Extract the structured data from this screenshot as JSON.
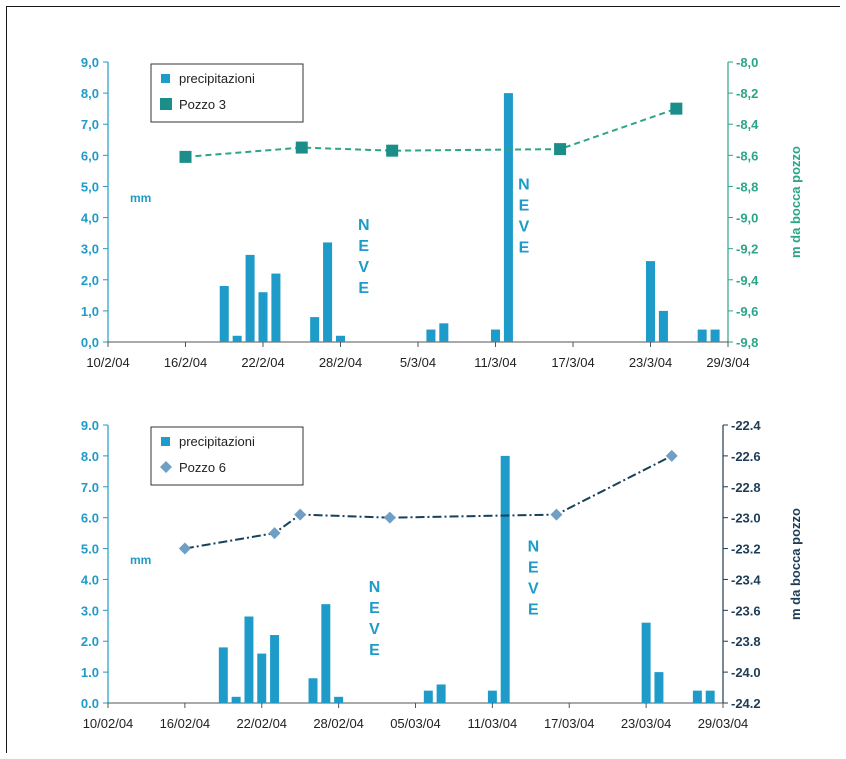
{
  "chart_data": [
    {
      "type": "bar+line",
      "title": "",
      "categories": [
        "10/2/04",
        "16/2/04",
        "22/2/04",
        "28/2/04",
        "5/3/04",
        "11/3/04",
        "17/3/04",
        "23/3/04",
        "29/3/04"
      ],
      "left_axis": {
        "label": "mm",
        "ylim": [
          0,
          9
        ],
        "ticks": [
          "0,0",
          "1,0",
          "2,0",
          "3,0",
          "4,0",
          "5,0",
          "6,0",
          "7,0",
          "8,0",
          "9,0"
        ]
      },
      "right_axis": {
        "label": "m da bocca pozzo",
        "ylim": [
          -9.8,
          -8.0
        ],
        "ticks": [
          "-8,0",
          "-8,2",
          "-8,4",
          "-8,6",
          "-8,8",
          "-9,0",
          "-9,2",
          "-9,4",
          "-9,6",
          "-9,8"
        ]
      },
      "series": [
        {
          "name": "precipitazioni",
          "kind": "bar",
          "points": [
            [
              9,
              1.8
            ],
            [
              10,
              0.2
            ],
            [
              11,
              2.8
            ],
            [
              12,
              1.6
            ],
            [
              13,
              2.2
            ],
            [
              16,
              0.8
            ],
            [
              17,
              3.2
            ],
            [
              18,
              0.2
            ],
            [
              25,
              0.4
            ],
            [
              26,
              0.6
            ],
            [
              30,
              0.4
            ],
            [
              31,
              8.0
            ],
            [
              42,
              2.6
            ],
            [
              43,
              1.0
            ],
            [
              46,
              0.4
            ],
            [
              47,
              0.4
            ]
          ]
        },
        {
          "name": "Pozzo 3",
          "kind": "line",
          "marker": "square",
          "points": [
            [
              6,
              -8.61
            ],
            [
              15,
              -8.55
            ],
            [
              22,
              -8.57
            ],
            [
              35,
              -8.56
            ],
            [
              44,
              -8.3
            ]
          ]
        }
      ],
      "annotations": [
        {
          "text": "N E V E",
          "x": 19.8,
          "y": 3.6
        },
        {
          "text": "N E V E",
          "x": 32.2,
          "y": 4.9
        }
      ]
    },
    {
      "type": "bar+line",
      "title": "",
      "categories": [
        "10/02/04",
        "16/02/04",
        "22/02/04",
        "28/02/04",
        "05/03/04",
        "11/03/04",
        "17/03/04",
        "23/03/04",
        "29/03/04"
      ],
      "left_axis": {
        "label": "mm",
        "ylim": [
          0,
          9
        ],
        "ticks": [
          "0.0",
          "1.0",
          "2.0",
          "3.0",
          "4.0",
          "5.0",
          "6.0",
          "7.0",
          "8.0",
          "9.0"
        ]
      },
      "right_axis": {
        "label": "m da bocca pozzo",
        "ylim": [
          -24.2,
          -22.4
        ],
        "ticks": [
          "-22.4",
          "-22.6",
          "-22.8",
          "-23.0",
          "-23.2",
          "-23.4",
          "-23.6",
          "-23.8",
          "-24.0",
          "-24.2"
        ]
      },
      "series": [
        {
          "name": "precipitazioni",
          "kind": "bar",
          "points": [
            [
              9,
              1.8
            ],
            [
              10,
              0.2
            ],
            [
              11,
              2.8
            ],
            [
              12,
              1.6
            ],
            [
              13,
              2.2
            ],
            [
              16,
              0.8
            ],
            [
              17,
              3.2
            ],
            [
              18,
              0.2
            ],
            [
              25,
              0.4
            ],
            [
              26,
              0.6
            ],
            [
              30,
              0.4
            ],
            [
              31,
              8.0
            ],
            [
              42,
              2.6
            ],
            [
              43,
              1.0
            ],
            [
              46,
              0.4
            ],
            [
              47,
              0.4
            ]
          ]
        },
        {
          "name": "Pozzo 6",
          "kind": "line",
          "marker": "diamond",
          "points": [
            [
              6,
              -23.2
            ],
            [
              13,
              -23.1
            ],
            [
              15,
              -22.98
            ],
            [
              22,
              -23.0
            ],
            [
              35,
              -22.98
            ],
            [
              44,
              -22.6
            ]
          ]
        }
      ],
      "annotations": [
        {
          "text": "N E V E",
          "x": 20.8,
          "y": 3.6
        },
        {
          "text": "N E V E",
          "x": 33.2,
          "y": 4.9
        }
      ]
    }
  ],
  "colors": {
    "bar": "#1f9bc9",
    "pozzo3": "#2aa588",
    "pozzo3_marker": "#1b8e8a",
    "pozzo6": "#17415a",
    "pozzo6_marker": "#6f9fc4",
    "mm_label": "#1f9bc9",
    "right_label_top": "#2aa588",
    "right_label_bottom": "#1e3c55"
  }
}
